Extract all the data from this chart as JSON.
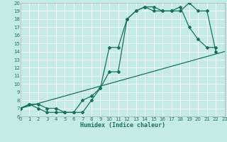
{
  "xlabel": "Humidex (Indice chaleur)",
  "bg_color": "#c5ebe8",
  "grid_color": "#ffffff",
  "line_color": "#1a7060",
  "xlim": [
    0,
    23
  ],
  "ylim": [
    6,
    20
  ],
  "xticks": [
    0,
    1,
    2,
    3,
    4,
    5,
    6,
    7,
    8,
    9,
    10,
    11,
    12,
    13,
    14,
    15,
    16,
    17,
    18,
    19,
    20,
    21,
    22,
    23
  ],
  "yticks": [
    6,
    7,
    8,
    9,
    10,
    11,
    12,
    13,
    14,
    15,
    16,
    17,
    18,
    19,
    20
  ],
  "curve1_x": [
    0,
    1,
    2,
    3,
    4,
    5,
    6,
    7,
    8,
    9,
    10,
    11,
    12,
    13,
    14,
    15,
    16,
    17,
    18,
    19,
    20,
    21,
    22
  ],
  "curve1_y": [
    7.0,
    7.5,
    7.5,
    7.0,
    7.0,
    6.5,
    6.5,
    8.0,
    8.5,
    9.5,
    11.5,
    11.5,
    18.0,
    19.0,
    19.5,
    19.0,
    19.0,
    19.0,
    19.0,
    20.0,
    19.0,
    19.0,
    14.0
  ],
  "curve2_x": [
    0,
    1,
    2,
    3,
    4,
    5,
    6,
    7,
    8,
    9,
    10,
    11,
    12,
    13,
    14,
    15,
    16,
    17,
    18,
    19,
    20,
    21,
    22
  ],
  "curve2_y": [
    7.0,
    7.5,
    7.0,
    6.5,
    6.5,
    6.5,
    6.5,
    6.5,
    8.0,
    9.5,
    14.5,
    14.5,
    18.0,
    19.0,
    19.5,
    19.5,
    19.0,
    19.0,
    19.5,
    17.0,
    15.5,
    14.5,
    14.5
  ],
  "line_x": [
    0,
    23
  ],
  "line_y": [
    7.0,
    14.0
  ],
  "tick_fontsize": 5.0,
  "xlabel_fontsize": 6.0
}
